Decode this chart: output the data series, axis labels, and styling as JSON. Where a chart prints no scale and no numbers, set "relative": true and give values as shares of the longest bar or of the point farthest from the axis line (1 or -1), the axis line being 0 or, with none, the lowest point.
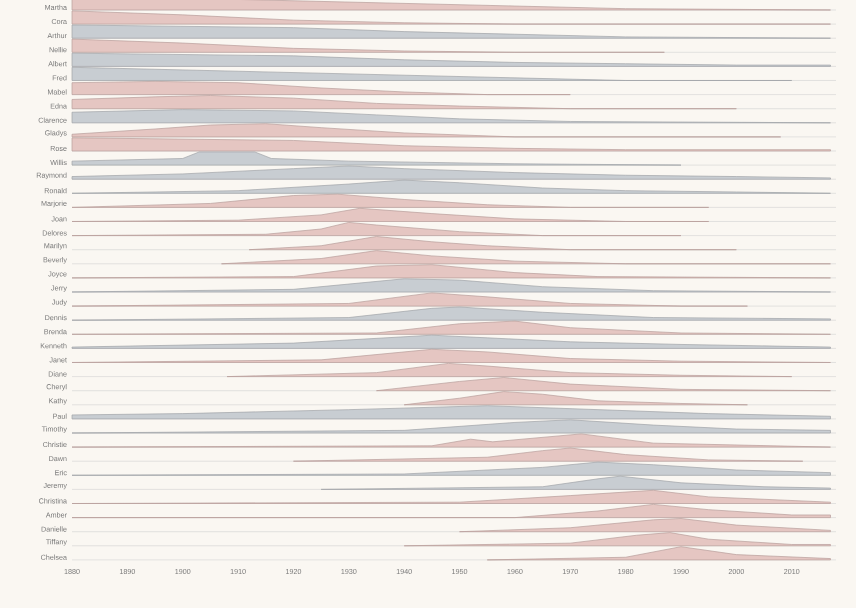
{
  "chart_data": [
    {
      "type": "area",
      "relative": true,
      "ylabel": "Martha",
      "color": "#e5c6c2",
      "x": [
        1880,
        1900,
        1920,
        1940,
        1960,
        1980,
        2017
      ],
      "values": [
        1,
        0.9,
        0.7,
        0.5,
        0.3,
        0.1,
        0
      ],
      "xlim": [
        1880,
        2018
      ],
      "tick_labels": false
    },
    {
      "type": "area",
      "relative": true,
      "ylabel": "Cora",
      "color": "#e5c6c2",
      "x": [
        1880,
        1900,
        1920,
        1940,
        1960,
        2017
      ],
      "values": [
        1,
        0.7,
        0.3,
        0.1,
        0,
        0
      ],
      "xlim": [
        1880,
        2018
      ],
      "tick_labels": false
    },
    {
      "type": "area",
      "relative": true,
      "ylabel": "Arthur",
      "color": "#c8cdd2",
      "x": [
        1880,
        1900,
        1920,
        1940,
        1960,
        1980,
        2017
      ],
      "values": [
        1,
        0.9,
        0.8,
        0.5,
        0.3,
        0.1,
        0
      ],
      "xlim": [
        1880,
        2018
      ],
      "tick_labels": false
    },
    {
      "type": "area",
      "relative": true,
      "ylabel": "Nellie",
      "color": "#e5c6c2",
      "x": [
        1880,
        1900,
        1920,
        1940,
        1960,
        1987
      ],
      "values": [
        1,
        0.7,
        0.3,
        0.1,
        0,
        0
      ],
      "xlim": [
        1880,
        2018
      ],
      "tick_labels": false
    },
    {
      "type": "area",
      "relative": true,
      "ylabel": "Albert",
      "color": "#c8cdd2",
      "x": [
        1880,
        1900,
        1920,
        1940,
        1960,
        1980,
        2000,
        2017
      ],
      "values": [
        1,
        0.9,
        0.8,
        0.5,
        0.3,
        0.2,
        0.1,
        0.1
      ],
      "xlim": [
        1880,
        2018
      ],
      "tick_labels": false
    },
    {
      "type": "area",
      "relative": true,
      "ylabel": "Fred",
      "color": "#c8cdd2",
      "x": [
        1880,
        1900,
        1920,
        1940,
        1960,
        1980,
        2010
      ],
      "values": [
        1,
        0.8,
        0.6,
        0.4,
        0.2,
        0,
        0
      ],
      "xlim": [
        1880,
        2018
      ],
      "tick_labels": false
    },
    {
      "type": "area",
      "relative": true,
      "ylabel": "Mabel",
      "color": "#e5c6c2",
      "x": [
        1880,
        1895,
        1910,
        1925,
        1940,
        1955,
        1970
      ],
      "values": [
        0.9,
        1,
        0.9,
        0.5,
        0.2,
        0,
        0
      ],
      "xlim": [
        1880,
        2018
      ],
      "tick_labels": false
    },
    {
      "type": "area",
      "relative": true,
      "ylabel": "Edna",
      "color": "#e5c6c2",
      "x": [
        1880,
        1895,
        1905,
        1920,
        1935,
        1950,
        1970,
        2000
      ],
      "values": [
        0.7,
        0.9,
        1,
        0.8,
        0.4,
        0.2,
        0,
        0
      ],
      "xlim": [
        1880,
        2018
      ],
      "tick_labels": false
    },
    {
      "type": "area",
      "relative": true,
      "ylabel": "Clarence",
      "color": "#c8cdd2",
      "x": [
        1880,
        1900,
        1920,
        1935,
        1950,
        1970,
        2017
      ],
      "values": [
        0.8,
        1,
        0.9,
        0.6,
        0.3,
        0.1,
        0
      ],
      "xlim": [
        1880,
        2018
      ],
      "tick_labels": false
    },
    {
      "type": "area",
      "relative": true,
      "ylabel": "Gladys",
      "color": "#e5c6c2",
      "x": [
        1880,
        1895,
        1905,
        1915,
        1925,
        1940,
        1960,
        2008
      ],
      "values": [
        0.2,
        0.6,
        0.9,
        1,
        0.7,
        0.3,
        0,
        0
      ],
      "xlim": [
        1880,
        2018
      ],
      "tick_labels": false
    },
    {
      "type": "area",
      "relative": true,
      "ylabel": "Rose",
      "color": "#e5c6c2",
      "x": [
        1880,
        1900,
        1920,
        1940,
        1960,
        1980,
        2017
      ],
      "values": [
        1,
        0.9,
        0.8,
        0.4,
        0.2,
        0.1,
        0.1
      ],
      "xlim": [
        1880,
        2018
      ],
      "tick_labels": false
    },
    {
      "type": "area",
      "relative": true,
      "ylabel": "Willis",
      "color": "#c8cdd2",
      "x": [
        1880,
        1900,
        1903,
        1913,
        1916,
        1930,
        1960,
        1990
      ],
      "values": [
        0.3,
        0.5,
        1,
        1,
        0.5,
        0.3,
        0.1,
        0
      ],
      "xlim": [
        1880,
        2018
      ],
      "tick_labels": false
    },
    {
      "type": "area",
      "relative": true,
      "ylabel": "Raymond",
      "color": "#c8cdd2",
      "x": [
        1880,
        1900,
        1920,
        1930,
        1940,
        1960,
        1980,
        2000,
        2017
      ],
      "values": [
        0.2,
        0.4,
        0.8,
        1,
        0.8,
        0.5,
        0.3,
        0.2,
        0.1
      ],
      "xlim": [
        1880,
        2018
      ],
      "tick_labels": false
    },
    {
      "type": "area",
      "relative": true,
      "ylabel": "Ronald",
      "color": "#c8cdd2",
      "x": [
        1880,
        1910,
        1930,
        1940,
        1950,
        1965,
        1980,
        2000,
        2017
      ],
      "values": [
        0,
        0.2,
        0.7,
        1,
        0.8,
        0.4,
        0.2,
        0.1,
        0
      ],
      "xlim": [
        1880,
        2018
      ],
      "tick_labels": false
    },
    {
      "type": "area",
      "relative": true,
      "ylabel": "Marjorie",
      "color": "#e5c6c2",
      "x": [
        1880,
        1905,
        1920,
        1928,
        1940,
        1955,
        1970,
        1995
      ],
      "values": [
        0,
        0.3,
        0.9,
        1,
        0.6,
        0.2,
        0,
        0
      ],
      "xlim": [
        1880,
        2018
      ],
      "tick_labels": false
    },
    {
      "type": "area",
      "relative": true,
      "ylabel": "Joan",
      "color": "#e5c6c2",
      "x": [
        1880,
        1910,
        1925,
        1932,
        1945,
        1960,
        1980,
        1995
      ],
      "values": [
        0,
        0.1,
        0.5,
        1,
        0.6,
        0.2,
        0,
        0
      ],
      "xlim": [
        1880,
        2018
      ],
      "tick_labels": false
    },
    {
      "type": "area",
      "relative": true,
      "ylabel": "Delores",
      "color": "#e5c6c2",
      "x": [
        1880,
        1915,
        1925,
        1930,
        1935,
        1950,
        1965,
        1990
      ],
      "values": [
        0,
        0.1,
        0.5,
        1,
        0.8,
        0.3,
        0,
        0
      ],
      "xlim": [
        1880,
        2018
      ],
      "tick_labels": false
    },
    {
      "type": "area",
      "relative": true,
      "ylabel": "Marilyn",
      "color": "#e5c6c2",
      "x": [
        1912,
        1925,
        1935,
        1945,
        1955,
        1970,
        2000
      ],
      "values": [
        0,
        0.3,
        1,
        0.6,
        0.3,
        0,
        0
      ],
      "xlim": [
        1880,
        2018
      ],
      "tick_labels": false
    },
    {
      "type": "area",
      "relative": true,
      "ylabel": "Beverly",
      "color": "#e5c6c2",
      "x": [
        1907,
        1925,
        1935,
        1945,
        1960,
        1980,
        2017
      ],
      "values": [
        0,
        0.4,
        1,
        0.6,
        0.2,
        0,
        0
      ],
      "xlim": [
        1880,
        2018
      ],
      "tick_labels": false
    },
    {
      "type": "area",
      "relative": true,
      "ylabel": "Joyce",
      "color": "#e5c6c2",
      "x": [
        1880,
        1920,
        1935,
        1945,
        1960,
        1975,
        2017
      ],
      "values": [
        0,
        0.1,
        0.9,
        1,
        0.4,
        0.1,
        0
      ],
      "xlim": [
        1880,
        2018
      ],
      "tick_labels": false
    },
    {
      "type": "area",
      "relative": true,
      "ylabel": "Jerry",
      "color": "#c8cdd2",
      "x": [
        1880,
        1920,
        1940,
        1950,
        1965,
        1985,
        2017
      ],
      "values": [
        0,
        0.2,
        1,
        0.9,
        0.4,
        0.1,
        0
      ],
      "xlim": [
        1880,
        2018
      ],
      "tick_labels": false
    },
    {
      "type": "area",
      "relative": true,
      "ylabel": "Judy",
      "color": "#e5c6c2",
      "x": [
        1880,
        1930,
        1945,
        1955,
        1970,
        1990,
        2002
      ],
      "values": [
        0,
        0.2,
        1,
        0.7,
        0.2,
        0,
        0
      ],
      "xlim": [
        1880,
        2018
      ],
      "tick_labels": false
    },
    {
      "type": "area",
      "relative": true,
      "ylabel": "Dennis",
      "color": "#c8cdd2",
      "x": [
        1880,
        1930,
        1945,
        1950,
        1965,
        1985,
        2017
      ],
      "values": [
        0,
        0.2,
        0.9,
        1,
        0.6,
        0.2,
        0.1
      ],
      "xlim": [
        1880,
        2018
      ],
      "tick_labels": false
    },
    {
      "type": "area",
      "relative": true,
      "ylabel": "Brenda",
      "color": "#e5c6c2",
      "x": [
        1880,
        1935,
        1950,
        1960,
        1970,
        1990,
        2017
      ],
      "values": [
        0,
        0.1,
        0.8,
        1,
        0.5,
        0.1,
        0
      ],
      "xlim": [
        1880,
        2018
      ],
      "tick_labels": false
    },
    {
      "type": "area",
      "relative": true,
      "ylabel": "Kenneth",
      "color": "#c8cdd2",
      "x": [
        1880,
        1920,
        1945,
        1955,
        1970,
        1990,
        2017
      ],
      "values": [
        0.1,
        0.4,
        1,
        0.8,
        0.5,
        0.3,
        0.1
      ],
      "xlim": [
        1880,
        2018
      ],
      "tick_labels": false
    },
    {
      "type": "area",
      "relative": true,
      "ylabel": "Janet",
      "color": "#e5c6c2",
      "x": [
        1880,
        1925,
        1945,
        1955,
        1970,
        1990,
        2017
      ],
      "values": [
        0,
        0.2,
        1,
        0.8,
        0.3,
        0.1,
        0
      ],
      "xlim": [
        1880,
        2018
      ],
      "tick_labels": false
    },
    {
      "type": "area",
      "relative": true,
      "ylabel": "Diane",
      "color": "#e5c6c2",
      "x": [
        1908,
        1935,
        1948,
        1955,
        1970,
        1990,
        2010
      ],
      "values": [
        0,
        0.3,
        1,
        0.8,
        0.3,
        0.1,
        0
      ],
      "xlim": [
        1880,
        2018
      ],
      "tick_labels": false
    },
    {
      "type": "area",
      "relative": true,
      "ylabel": "Cheryl",
      "color": "#e5c6c2",
      "x": [
        1935,
        1950,
        1958,
        1970,
        1990,
        2017
      ],
      "values": [
        0,
        0.7,
        1,
        0.5,
        0.1,
        0
      ],
      "xlim": [
        1880,
        2018
      ],
      "tick_labels": false
    },
    {
      "type": "area",
      "relative": true,
      "ylabel": "Kathy",
      "color": "#e5c6c2",
      "x": [
        1940,
        1950,
        1958,
        1965,
        1975,
        1990,
        2002
      ],
      "values": [
        0,
        0.5,
        1,
        0.8,
        0.3,
        0.1,
        0
      ],
      "xlim": [
        1880,
        2018
      ],
      "tick_labels": false
    },
    {
      "type": "area",
      "relative": true,
      "ylabel": "Paul",
      "color": "#c8cdd2",
      "x": [
        1880,
        1900,
        1930,
        1955,
        1975,
        1995,
        2017
      ],
      "values": [
        0.3,
        0.4,
        0.7,
        1,
        0.7,
        0.4,
        0.2
      ],
      "xlim": [
        1880,
        2018
      ],
      "tick_labels": false
    },
    {
      "type": "area",
      "relative": true,
      "ylabel": "Timothy",
      "color": "#c8cdd2",
      "x": [
        1880,
        1940,
        1960,
        1970,
        1985,
        2000,
        2017
      ],
      "values": [
        0,
        0.2,
        0.8,
        1,
        0.6,
        0.3,
        0.2
      ],
      "xlim": [
        1880,
        2018
      ],
      "tick_labels": false
    },
    {
      "type": "area",
      "relative": true,
      "ylabel": "Christie",
      "color": "#e5c6c2",
      "x": [
        1880,
        1945,
        1952,
        1956,
        1972,
        1985,
        2017
      ],
      "values": [
        0,
        0.1,
        0.6,
        0.4,
        1,
        0.3,
        0
      ],
      "xlim": [
        1880,
        2018
      ],
      "tick_labels": false
    },
    {
      "type": "area",
      "relative": true,
      "ylabel": "Dawn",
      "color": "#e5c6c2",
      "x": [
        1920,
        1955,
        1965,
        1970,
        1980,
        1995,
        2012
      ],
      "values": [
        0,
        0.3,
        0.8,
        1,
        0.5,
        0.1,
        0
      ],
      "xlim": [
        1880,
        2018
      ],
      "tick_labels": false
    },
    {
      "type": "area",
      "relative": true,
      "ylabel": "Eric",
      "color": "#c8cdd2",
      "x": [
        1880,
        1940,
        1965,
        1975,
        1985,
        2000,
        2017
      ],
      "values": [
        0,
        0.1,
        0.6,
        1,
        0.8,
        0.4,
        0.2
      ],
      "xlim": [
        1880,
        2018
      ],
      "tick_labels": false
    },
    {
      "type": "area",
      "relative": true,
      "ylabel": "Jeremy",
      "color": "#c8cdd2",
      "x": [
        1925,
        1965,
        1975,
        1979,
        1990,
        2005,
        2017
      ],
      "values": [
        0,
        0.2,
        0.8,
        1,
        0.5,
        0.2,
        0.1
      ],
      "xlim": [
        1880,
        2018
      ],
      "tick_labels": false
    },
    {
      "type": "area",
      "relative": true,
      "ylabel": "Christina",
      "color": "#e5c6c2",
      "x": [
        1880,
        1950,
        1970,
        1985,
        1995,
        2017
      ],
      "values": [
        0,
        0.1,
        0.6,
        1,
        0.5,
        0.1
      ],
      "xlim": [
        1880,
        2018
      ],
      "tick_labels": false
    },
    {
      "type": "area",
      "relative": true,
      "ylabel": "Amber",
      "color": "#e5c6c2",
      "x": [
        1880,
        1960,
        1975,
        1985,
        1995,
        2010,
        2017
      ],
      "values": [
        0,
        0,
        0.5,
        1,
        0.6,
        0.2,
        0.2
      ],
      "xlim": [
        1880,
        2018
      ],
      "tick_labels": false
    },
    {
      "type": "area",
      "relative": true,
      "ylabel": "Danielle",
      "color": "#e5c6c2",
      "x": [
        1950,
        1970,
        1985,
        1990,
        2000,
        2017
      ],
      "values": [
        0,
        0.3,
        0.9,
        1,
        0.5,
        0.1
      ],
      "xlim": [
        1880,
        2018
      ],
      "tick_labels": false
    },
    {
      "type": "area",
      "relative": true,
      "ylabel": "Tiffany",
      "color": "#e5c6c2",
      "x": [
        1940,
        1970,
        1982,
        1988,
        1995,
        2010,
        2017
      ],
      "values": [
        0,
        0.2,
        0.8,
        1,
        0.5,
        0.1,
        0.1
      ],
      "xlim": [
        1880,
        2018
      ],
      "tick_labels": false
    },
    {
      "type": "area",
      "relative": true,
      "ylabel": "Chelsea",
      "color": "#e5c6c2",
      "x": [
        1955,
        1980,
        1990,
        2000,
        2017
      ],
      "values": [
        0,
        0.2,
        1,
        0.4,
        0.1
      ],
      "xlim": [
        1880,
        2018
      ],
      "tick_labels": "x",
      "xticks": [
        1880,
        1890,
        1900,
        1910,
        1920,
        1930,
        1940,
        1950,
        1960,
        1970,
        1980,
        1990,
        2000,
        2010
      ]
    }
  ]
}
